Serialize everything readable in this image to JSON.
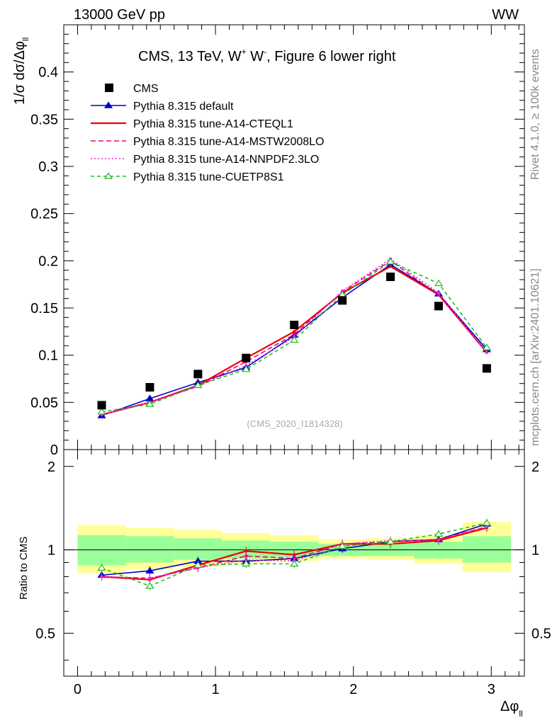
{
  "header": {
    "left": "13000 GeV pp",
    "right": "WW",
    "side_rivet": "Rivet 4.1.0, ≥ 100k events",
    "side_mcplots": "mcplots.cern.ch [arXiv:2401.10621]"
  },
  "chart_data": {
    "type": "line",
    "title_main": "CMS, 13 TeV, W",
    "title_sup1": "+",
    "title_mid": " W",
    "title_sup2": "-",
    "title_tail": ", Figure 6 lower right",
    "analysis_id": "(CMS_2020_I1814328)",
    "ylabel_main": "1/σ dσ/Δφ",
    "ylabel_sub": "ll",
    "ylabel_ratio": "Ratio to CMS",
    "xlabel_main": "Δφ",
    "xlabel_sub": "ll",
    "x": [
      0.175,
      0.524,
      0.873,
      1.222,
      1.571,
      1.92,
      2.269,
      2.618,
      2.967
    ],
    "bin_edges": [
      0,
      0.349,
      0.698,
      1.047,
      1.396,
      1.745,
      2.094,
      2.443,
      2.792,
      3.142
    ],
    "xlim": [
      -0.1,
      3.24
    ],
    "ylim_main": [
      0,
      0.45
    ],
    "ylim_ratio": [
      0.35,
      2.3
    ],
    "x_ticks": [
      "0",
      "1",
      "2",
      "3"
    ],
    "y_ticks_main": [
      "0",
      "0.05",
      "0.1",
      "0.15",
      "0.2",
      "0.25",
      "0.3",
      "0.35",
      "0.4"
    ],
    "y_ticks_ratio": [
      "0.5",
      "1",
      "2"
    ],
    "data": {
      "name": "CMS",
      "values": [
        0.047,
        0.066,
        0.08,
        0.097,
        0.132,
        0.158,
        0.183,
        0.152,
        0.086
      ],
      "ratio_band_green": [
        [
          0.88,
          1.13
        ],
        [
          0.9,
          1.12
        ],
        [
          0.92,
          1.1
        ],
        [
          0.93,
          1.08
        ],
        [
          0.94,
          1.07
        ],
        [
          0.95,
          1.05
        ],
        [
          0.95,
          1.06
        ],
        [
          0.93,
          1.07
        ],
        [
          0.9,
          1.12
        ]
      ],
      "ratio_band_yellow": [
        [
          0.82,
          1.23
        ],
        [
          0.85,
          1.2
        ],
        [
          0.87,
          1.18
        ],
        [
          0.89,
          1.15
        ],
        [
          0.91,
          1.13
        ],
        [
          0.93,
          1.09
        ],
        [
          0.92,
          1.1
        ],
        [
          0.89,
          1.13
        ],
        [
          0.83,
          1.26
        ]
      ]
    },
    "series": [
      {
        "name": "Pythia 8.315 default",
        "color": "#0000cc",
        "dash": "",
        "marker": "triangle",
        "values": [
          0.036,
          0.054,
          0.071,
          0.087,
          0.121,
          0.161,
          0.196,
          0.165,
          0.106
        ],
        "ratio": [
          0.81,
          0.84,
          0.91,
          0.91,
          0.93,
          1.01,
          1.07,
          1.09,
          1.24
        ]
      },
      {
        "name": "Pythia 8.315 tune-A14-CTEQL1",
        "color": "#ee0000",
        "dash": "",
        "marker": "none",
        "values": [
          0.037,
          0.05,
          0.068,
          0.097,
          0.125,
          0.166,
          0.194,
          0.164,
          0.103
        ],
        "ratio": [
          0.8,
          0.78,
          0.88,
          0.99,
          0.96,
          1.05,
          1.05,
          1.08,
          1.2
        ]
      },
      {
        "name": "Pythia 8.315 tune-A14-MSTW2008LO",
        "color": "#ee0077",
        "dash": "7,4",
        "marker": "none",
        "values": [
          0.037,
          0.05,
          0.067,
          0.093,
          0.122,
          0.167,
          0.2,
          0.164,
          0.103
        ],
        "ratio": [
          0.8,
          0.79,
          0.86,
          0.95,
          0.93,
          1.05,
          1.07,
          1.09,
          1.21
        ]
      },
      {
        "name": "Pythia 8.315 tune-A14-NNPDF2.3LO",
        "color": "#ee22dd",
        "dash": "2,3",
        "marker": "none",
        "values": [
          0.037,
          0.05,
          0.067,
          0.089,
          0.119,
          0.168,
          0.202,
          0.166,
          0.103
        ],
        "ratio": [
          0.8,
          0.79,
          0.86,
          0.92,
          0.91,
          1.05,
          1.08,
          1.09,
          1.21
        ]
      },
      {
        "name": "Pythia 8.315 tune-CUETP8S1",
        "color": "#22bb22",
        "dash": "5,4",
        "marker": "open-triangle",
        "values": [
          0.04,
          0.048,
          0.068,
          0.085,
          0.116,
          0.164,
          0.199,
          0.176,
          0.108
        ],
        "ratio": [
          0.86,
          0.74,
          0.88,
          0.89,
          0.89,
          1.03,
          1.07,
          1.14,
          1.25
        ]
      }
    ]
  }
}
